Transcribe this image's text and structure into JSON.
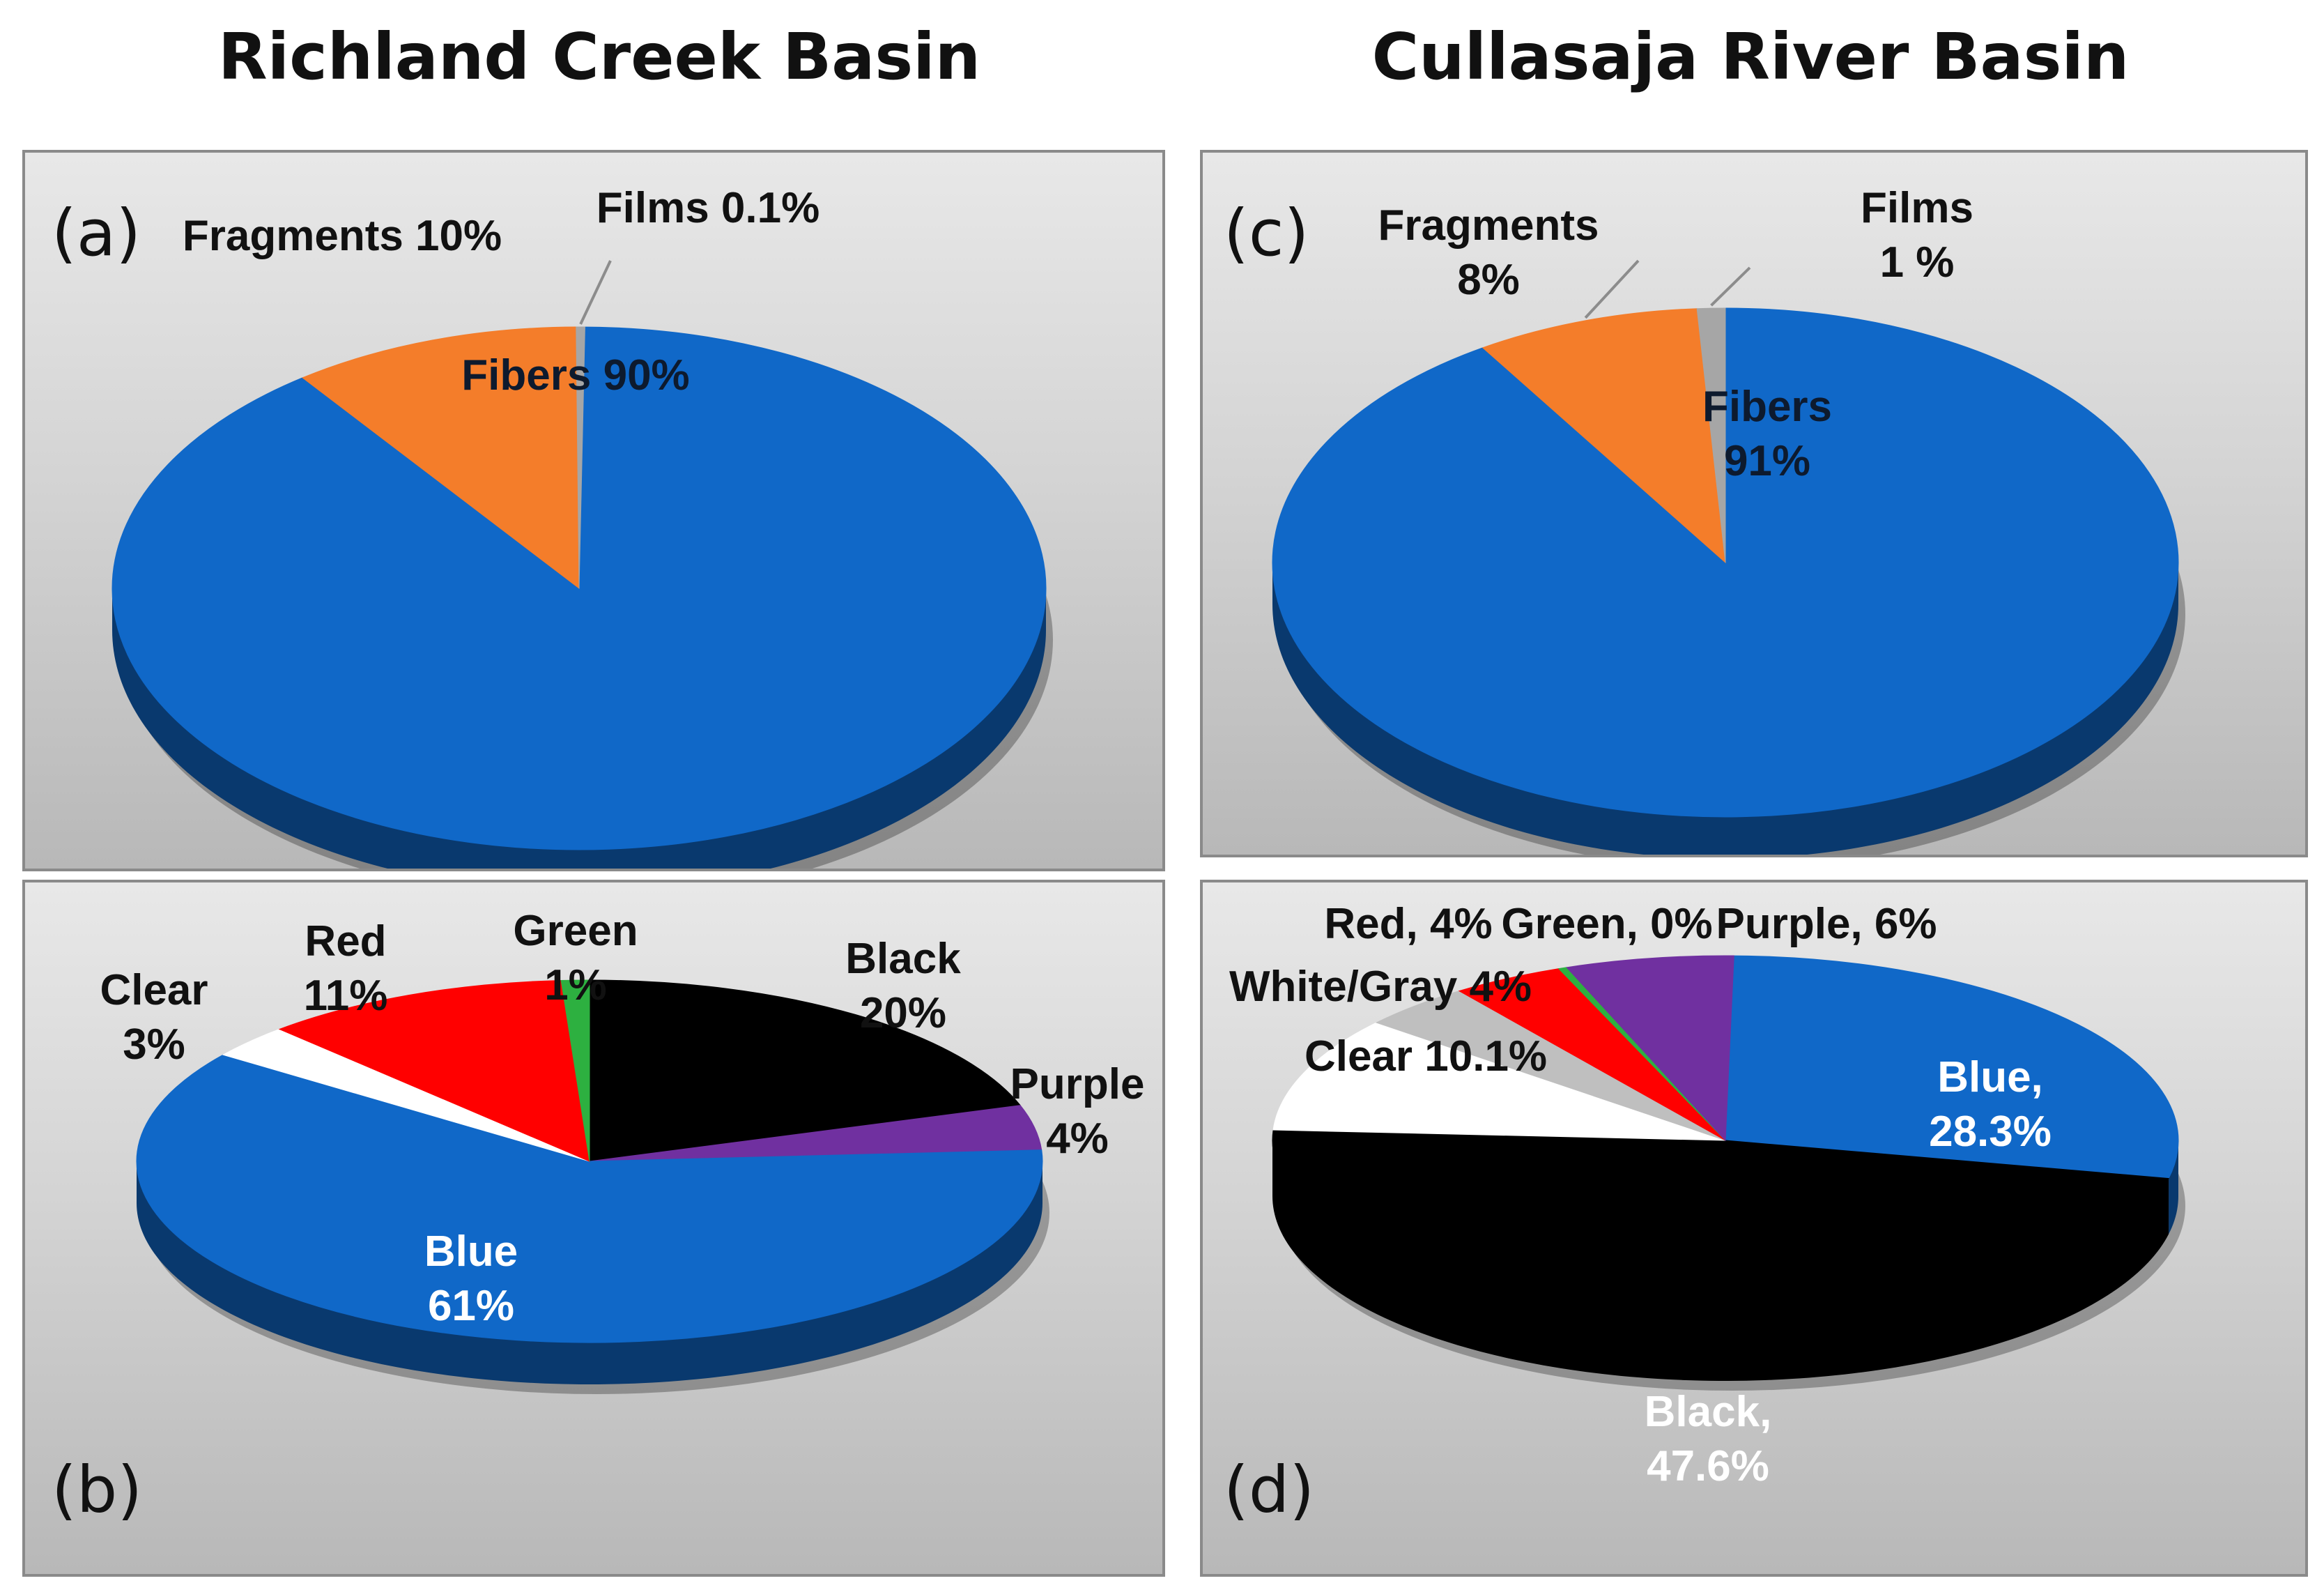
{
  "basins": {
    "left": "Richland Creek Basin",
    "right": "Cullasaja River Basin"
  },
  "chart_data": [
    {
      "panel": "(a)",
      "basin": "Richland Creek Basin",
      "type": "pie",
      "slices": [
        {
          "label": "Fibers",
          "value": 90,
          "text": [
            "Fibers 90%"
          ],
          "color": "#1068c8",
          "text_color": "#0d1a2e"
        },
        {
          "label": "Fragments",
          "value": 10,
          "text": [
            "Fragments 10%"
          ],
          "color": "#f47d2a",
          "text_color": "#111111"
        },
        {
          "label": "Films",
          "value": 0.1,
          "text": [
            "Films 0.1%"
          ],
          "color": "#a6a6a6",
          "text_color": "#111111"
        }
      ]
    },
    {
      "panel": "(b)",
      "basin": "Richland Creek Basin",
      "type": "pie",
      "slices": [
        {
          "label": "Black",
          "value": 20,
          "text": [
            "Black",
            "20%"
          ],
          "color": "#000000",
          "text_color": "#111111"
        },
        {
          "label": "Purple",
          "value": 4,
          "text": [
            "Purple",
            "4%"
          ],
          "color": "#7030a0",
          "text_color": "#111111"
        },
        {
          "label": "Blue",
          "value": 61,
          "text": [
            "Blue",
            "61%"
          ],
          "color": "#1068c8",
          "text_color": "#ffffff"
        },
        {
          "label": "Clear",
          "value": 3,
          "text": [
            "Clear",
            "3%"
          ],
          "color": "#ffffff",
          "text_color": "#111111"
        },
        {
          "label": "Red",
          "value": 11,
          "text": [
            "Red",
            "11%"
          ],
          "color": "#ff0000",
          "text_color": "#111111"
        },
        {
          "label": "Green",
          "value": 1,
          "text": [
            "Green",
            "1%"
          ],
          "color": "#2db040",
          "text_color": "#111111"
        }
      ]
    },
    {
      "panel": "(c)",
      "basin": "Cullasaja River Basin",
      "type": "pie",
      "slices": [
        {
          "label": "Fibers",
          "value": 91,
          "text": [
            "Fibers",
            "91%"
          ],
          "color": "#1068c8",
          "text_color": "#0d1a2e"
        },
        {
          "label": "Fragments",
          "value": 8,
          "text": [
            "Fragments",
            "8%"
          ],
          "color": "#f47d2a",
          "text_color": "#111111"
        },
        {
          "label": "Films",
          "value": 1,
          "text": [
            "Films",
            "1 %"
          ],
          "color": "#a6a6a6",
          "text_color": "#111111"
        }
      ]
    },
    {
      "panel": "(d)",
      "basin": "Cullasaja River Basin",
      "type": "pie",
      "slices": [
        {
          "label": "Blue",
          "value": 28.3,
          "text": [
            "Blue,",
            "28.3%"
          ],
          "color": "#1068c8",
          "text_color": "#ffffff"
        },
        {
          "label": "Black",
          "value": 47.6,
          "text": [
            "Black,",
            "47.6%"
          ],
          "color": "#000000",
          "text_color": "#ffffff"
        },
        {
          "label": "Clear",
          "value": 10.1,
          "text": [
            "Clear 10.1%"
          ],
          "color": "#ffffff",
          "text_color": "#111111"
        },
        {
          "label": "White/Gray",
          "value": 4,
          "text": [
            "White/Gray 4%"
          ],
          "color": "#bfbfbf",
          "text_color": "#111111"
        },
        {
          "label": "Red",
          "value": 4,
          "text": [
            "Red, 4%"
          ],
          "color": "#ff0000",
          "text_color": "#111111"
        },
        {
          "label": "Green",
          "value": 0,
          "text": [
            "Green, 0%"
          ],
          "color": "#2db040",
          "text_color": "#111111"
        },
        {
          "label": "Purple",
          "value": 6,
          "text": [
            "Purple, 6%"
          ],
          "color": "#7030a0",
          "text_color": "#111111"
        }
      ]
    }
  ]
}
